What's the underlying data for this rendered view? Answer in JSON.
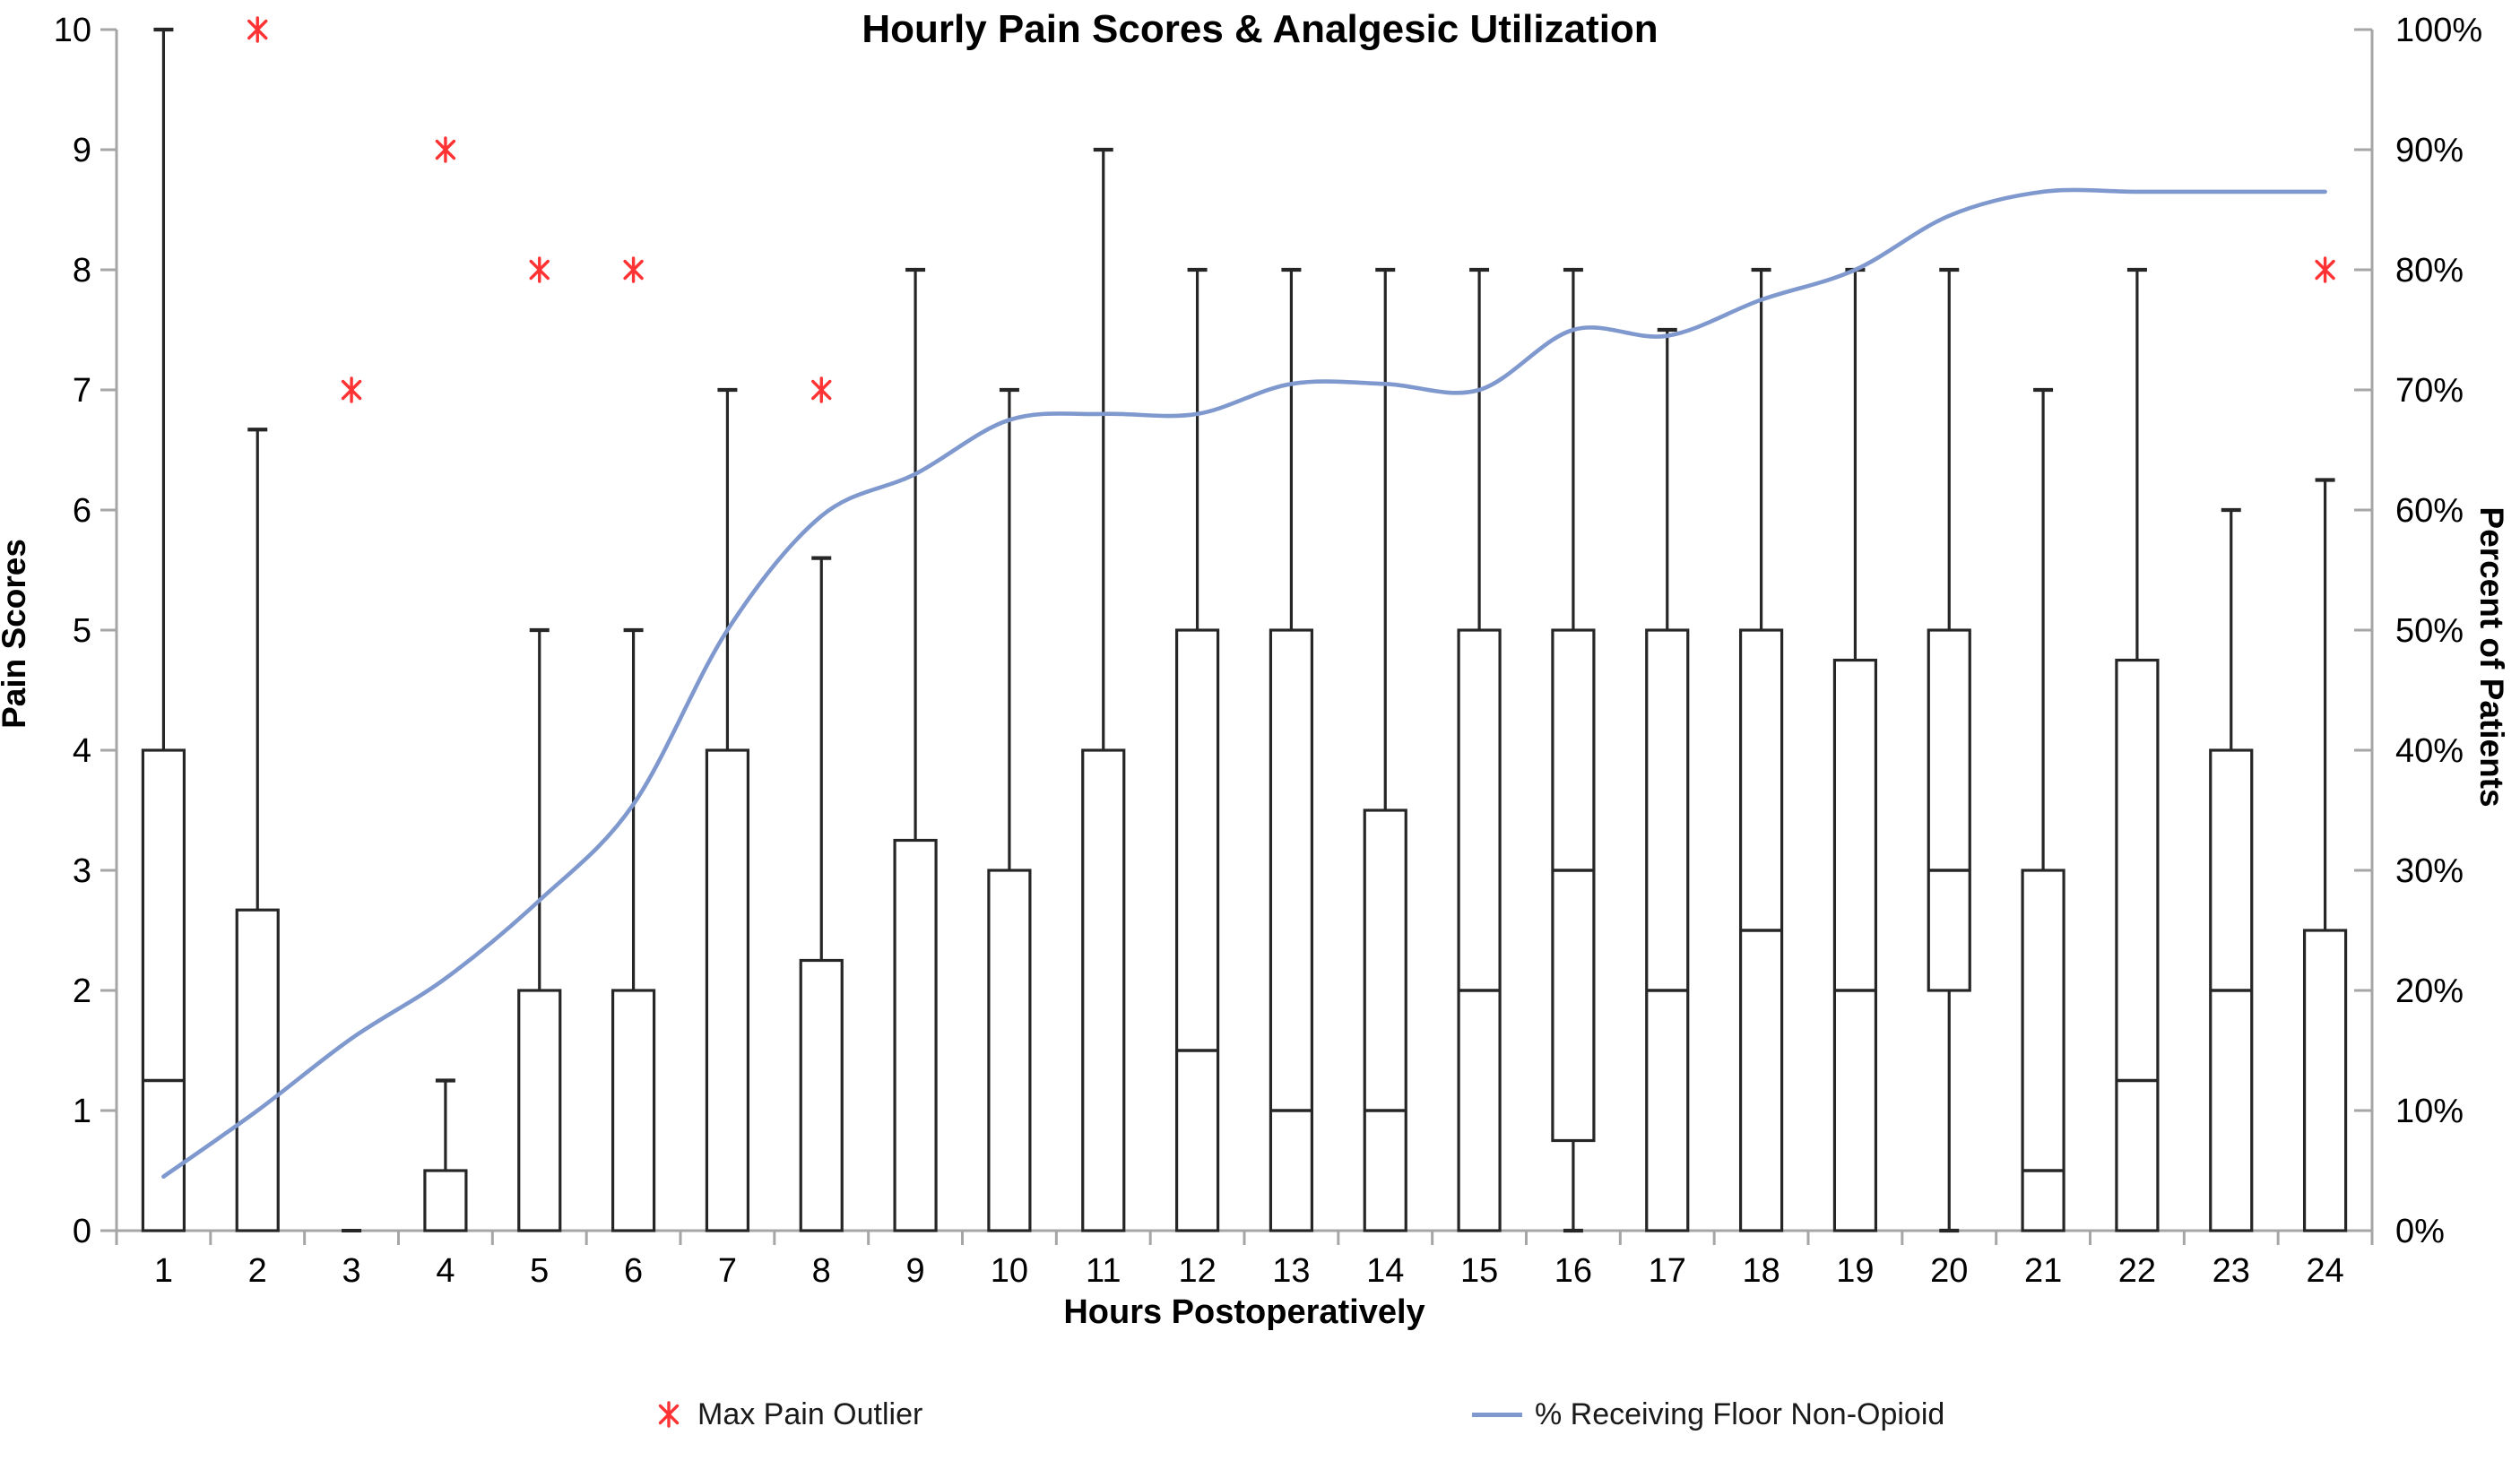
{
  "chart_data": {
    "type": "box-line-combo",
    "title": "Hourly Pain Scores & Analgesic Utilization",
    "xlabel": "Hours Postoperatively",
    "ylabel_left": "Pain Scores",
    "ylabel_right": "Percent of Patients",
    "categories": [
      "1",
      "2",
      "3",
      "4",
      "5",
      "6",
      "7",
      "8",
      "9",
      "10",
      "11",
      "12",
      "13",
      "14",
      "15",
      "16",
      "17",
      "18",
      "19",
      "20",
      "21",
      "22",
      "23",
      "24"
    ],
    "y_left_axis": {
      "min": 0,
      "max": 10,
      "step": 1,
      "tick_labels": [
        "0",
        "1",
        "2",
        "3",
        "4",
        "5",
        "6",
        "7",
        "8",
        "9",
        "10"
      ]
    },
    "y_right_axis": {
      "min": 0,
      "max": 100,
      "step": 10,
      "tick_labels": [
        "0%",
        "10%",
        "20%",
        "30%",
        "40%",
        "50%",
        "60%",
        "70%",
        "80%",
        "90%",
        "100%"
      ]
    },
    "grid": "off",
    "legend_position": "bottom",
    "colors": {
      "box_stroke": "#262626",
      "axis": "#a6a6a6",
      "trend_line": "#7f99cf",
      "outlier": "#ff3333"
    },
    "boxes": [
      {
        "hour": 1,
        "low": 0,
        "q1": 0,
        "median": 1.25,
        "q3": 4,
        "high": 10,
        "outlier": null
      },
      {
        "hour": 2,
        "low": 0,
        "q1": 0,
        "median": 0,
        "q3": 2.67,
        "high": 6.67,
        "outlier": 10
      },
      {
        "hour": 3,
        "low": 0,
        "q1": 0,
        "median": 0,
        "q3": 0,
        "high": 0,
        "outlier": 7
      },
      {
        "hour": 4,
        "low": 0,
        "q1": 0,
        "median": 0,
        "q3": 0.5,
        "high": 1.25,
        "outlier": 9
      },
      {
        "hour": 5,
        "low": 0,
        "q1": 0,
        "median": 0,
        "q3": 2,
        "high": 5,
        "outlier": 8
      },
      {
        "hour": 6,
        "low": 0,
        "q1": 0,
        "median": 0,
        "q3": 2,
        "high": 5,
        "outlier": 8
      },
      {
        "hour": 7,
        "low": 0,
        "q1": 0,
        "median": 0,
        "q3": 4,
        "high": 7,
        "outlier": null
      },
      {
        "hour": 8,
        "low": 0,
        "q1": 0,
        "median": 0,
        "q3": 2.25,
        "high": 5.6,
        "outlier": 7
      },
      {
        "hour": 9,
        "low": 0,
        "q1": 0,
        "median": 0,
        "q3": 3.25,
        "high": 8,
        "outlier": null
      },
      {
        "hour": 10,
        "low": 0,
        "q1": 0,
        "median": 0,
        "q3": 3,
        "high": 7,
        "outlier": null
      },
      {
        "hour": 11,
        "low": 0,
        "q1": 0,
        "median": 0,
        "q3": 4,
        "high": 9,
        "outlier": null
      },
      {
        "hour": 12,
        "low": 0,
        "q1": 0,
        "median": 1.5,
        "q3": 5,
        "high": 8,
        "outlier": null
      },
      {
        "hour": 13,
        "low": 0,
        "q1": 0,
        "median": 1,
        "q3": 5,
        "high": 8,
        "outlier": null
      },
      {
        "hour": 14,
        "low": 0,
        "q1": 0,
        "median": 1,
        "q3": 3.5,
        "high": 8,
        "outlier": null
      },
      {
        "hour": 15,
        "low": 0,
        "q1": 0,
        "median": 2,
        "q3": 5,
        "high": 8,
        "outlier": null
      },
      {
        "hour": 16,
        "low": 0,
        "q1": 0.75,
        "median": 3,
        "q3": 5,
        "high": 8,
        "outlier": null
      },
      {
        "hour": 17,
        "low": 0,
        "q1": 0,
        "median": 2,
        "q3": 5,
        "high": 7.5,
        "outlier": null
      },
      {
        "hour": 18,
        "low": 0,
        "q1": 0,
        "median": 2.5,
        "q3": 5,
        "high": 8,
        "outlier": null
      },
      {
        "hour": 19,
        "low": 0,
        "q1": 0,
        "median": 2,
        "q3": 4.75,
        "high": 8,
        "outlier": null
      },
      {
        "hour": 20,
        "low": 0,
        "q1": 2,
        "median": 3,
        "q3": 5,
        "high": 8,
        "outlier": null
      },
      {
        "hour": 21,
        "low": 0,
        "q1": 0,
        "median": 0.5,
        "q3": 3,
        "high": 7,
        "outlier": null
      },
      {
        "hour": 22,
        "low": 0,
        "q1": 0,
        "median": 1.25,
        "q3": 4.75,
        "high": 8,
        "outlier": null
      },
      {
        "hour": 23,
        "low": 0,
        "q1": 0,
        "median": 2,
        "q3": 4,
        "high": 6,
        "outlier": null
      },
      {
        "hour": 24,
        "low": 0,
        "q1": 0,
        "median": 0,
        "q3": 2.5,
        "high": 6.25,
        "outlier": 8
      }
    ],
    "line_series": {
      "name": "% Receiving Floor Non-Opioid",
      "values_percent": [
        4.5,
        10,
        16,
        21,
        27.5,
        35.5,
        50,
        59.5,
        63,
        67.5,
        68,
        68,
        70.5,
        70.5,
        70,
        75,
        74.5,
        77.5,
        80,
        84.5,
        86.5,
        86.5,
        86.5,
        86.5
      ]
    },
    "legend": [
      {
        "marker": "red-asterisk",
        "label": "Max Pain Outlier"
      },
      {
        "marker": "blue-line",
        "label": "% Receiving Floor Non-Opioid"
      }
    ]
  }
}
